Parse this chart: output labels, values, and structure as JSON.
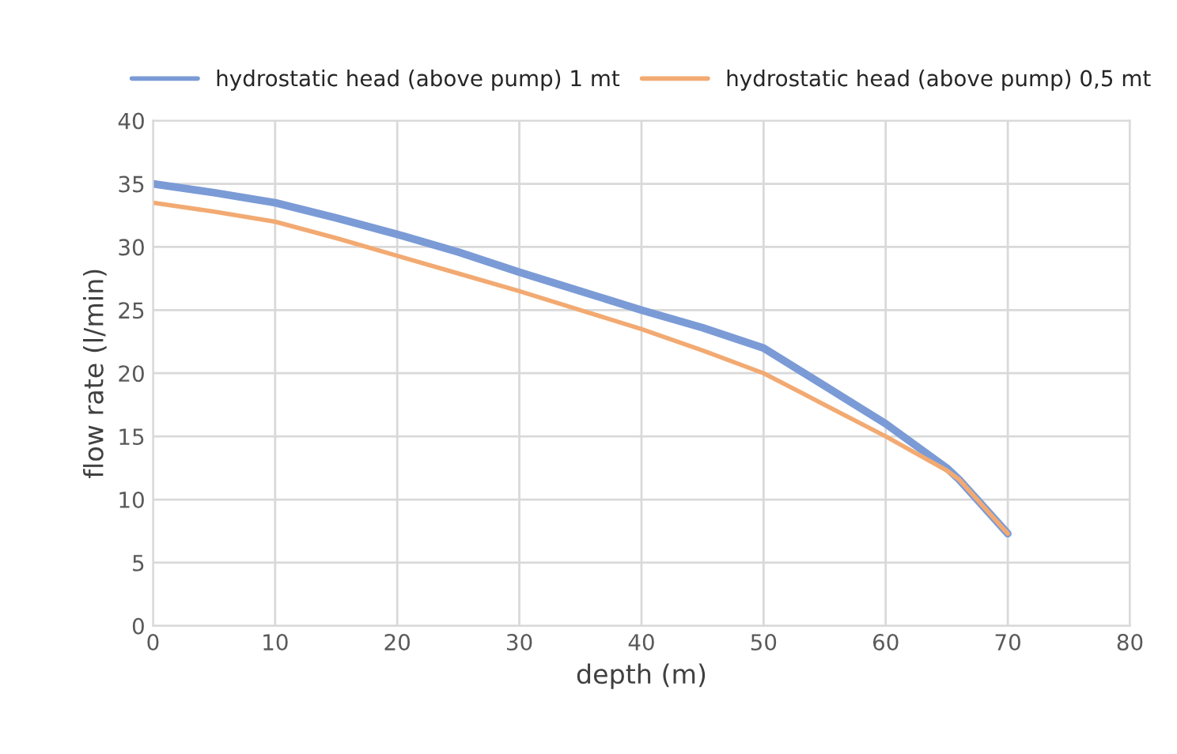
{
  "chart_data": {
    "type": "line",
    "xlabel": "depth (m)",
    "ylabel": "flow rate (l/min)",
    "xlim": [
      0,
      80
    ],
    "xticks": [
      0,
      10,
      20,
      30,
      40,
      50,
      60,
      70,
      80
    ],
    "ylim": [
      0,
      40
    ],
    "yticks": [
      0,
      5,
      10,
      15,
      20,
      25,
      30,
      35,
      40
    ],
    "grid": true,
    "legend": "top",
    "marker": "none",
    "line_style": "solid",
    "series": [
      {
        "name": "hydrostatic head (above pump) 1 mt",
        "color": "#7b9bd6",
        "x": [
          0,
          5,
          10,
          15,
          20,
          25,
          30,
          35,
          40,
          45,
          50,
          55,
          60,
          65,
          66,
          70
        ],
        "values": [
          35,
          34.3,
          33.5,
          32.3,
          31,
          29.6,
          28,
          26.5,
          25,
          23.6,
          22,
          19,
          16,
          12.5,
          11.6,
          7.3
        ]
      },
      {
        "name": "hydrostatic head (above pump) 0,5 mt",
        "color": "#f2aa72",
        "x": [
          0,
          5,
          10,
          15,
          20,
          25,
          30,
          35,
          40,
          45,
          50,
          55,
          60,
          65,
          66,
          70
        ],
        "values": [
          33.5,
          32.8,
          32,
          30.7,
          29.3,
          27.9,
          26.5,
          25,
          23.5,
          21.8,
          20,
          17.5,
          15,
          12.3,
          11.6,
          7.3
        ]
      }
    ]
  }
}
